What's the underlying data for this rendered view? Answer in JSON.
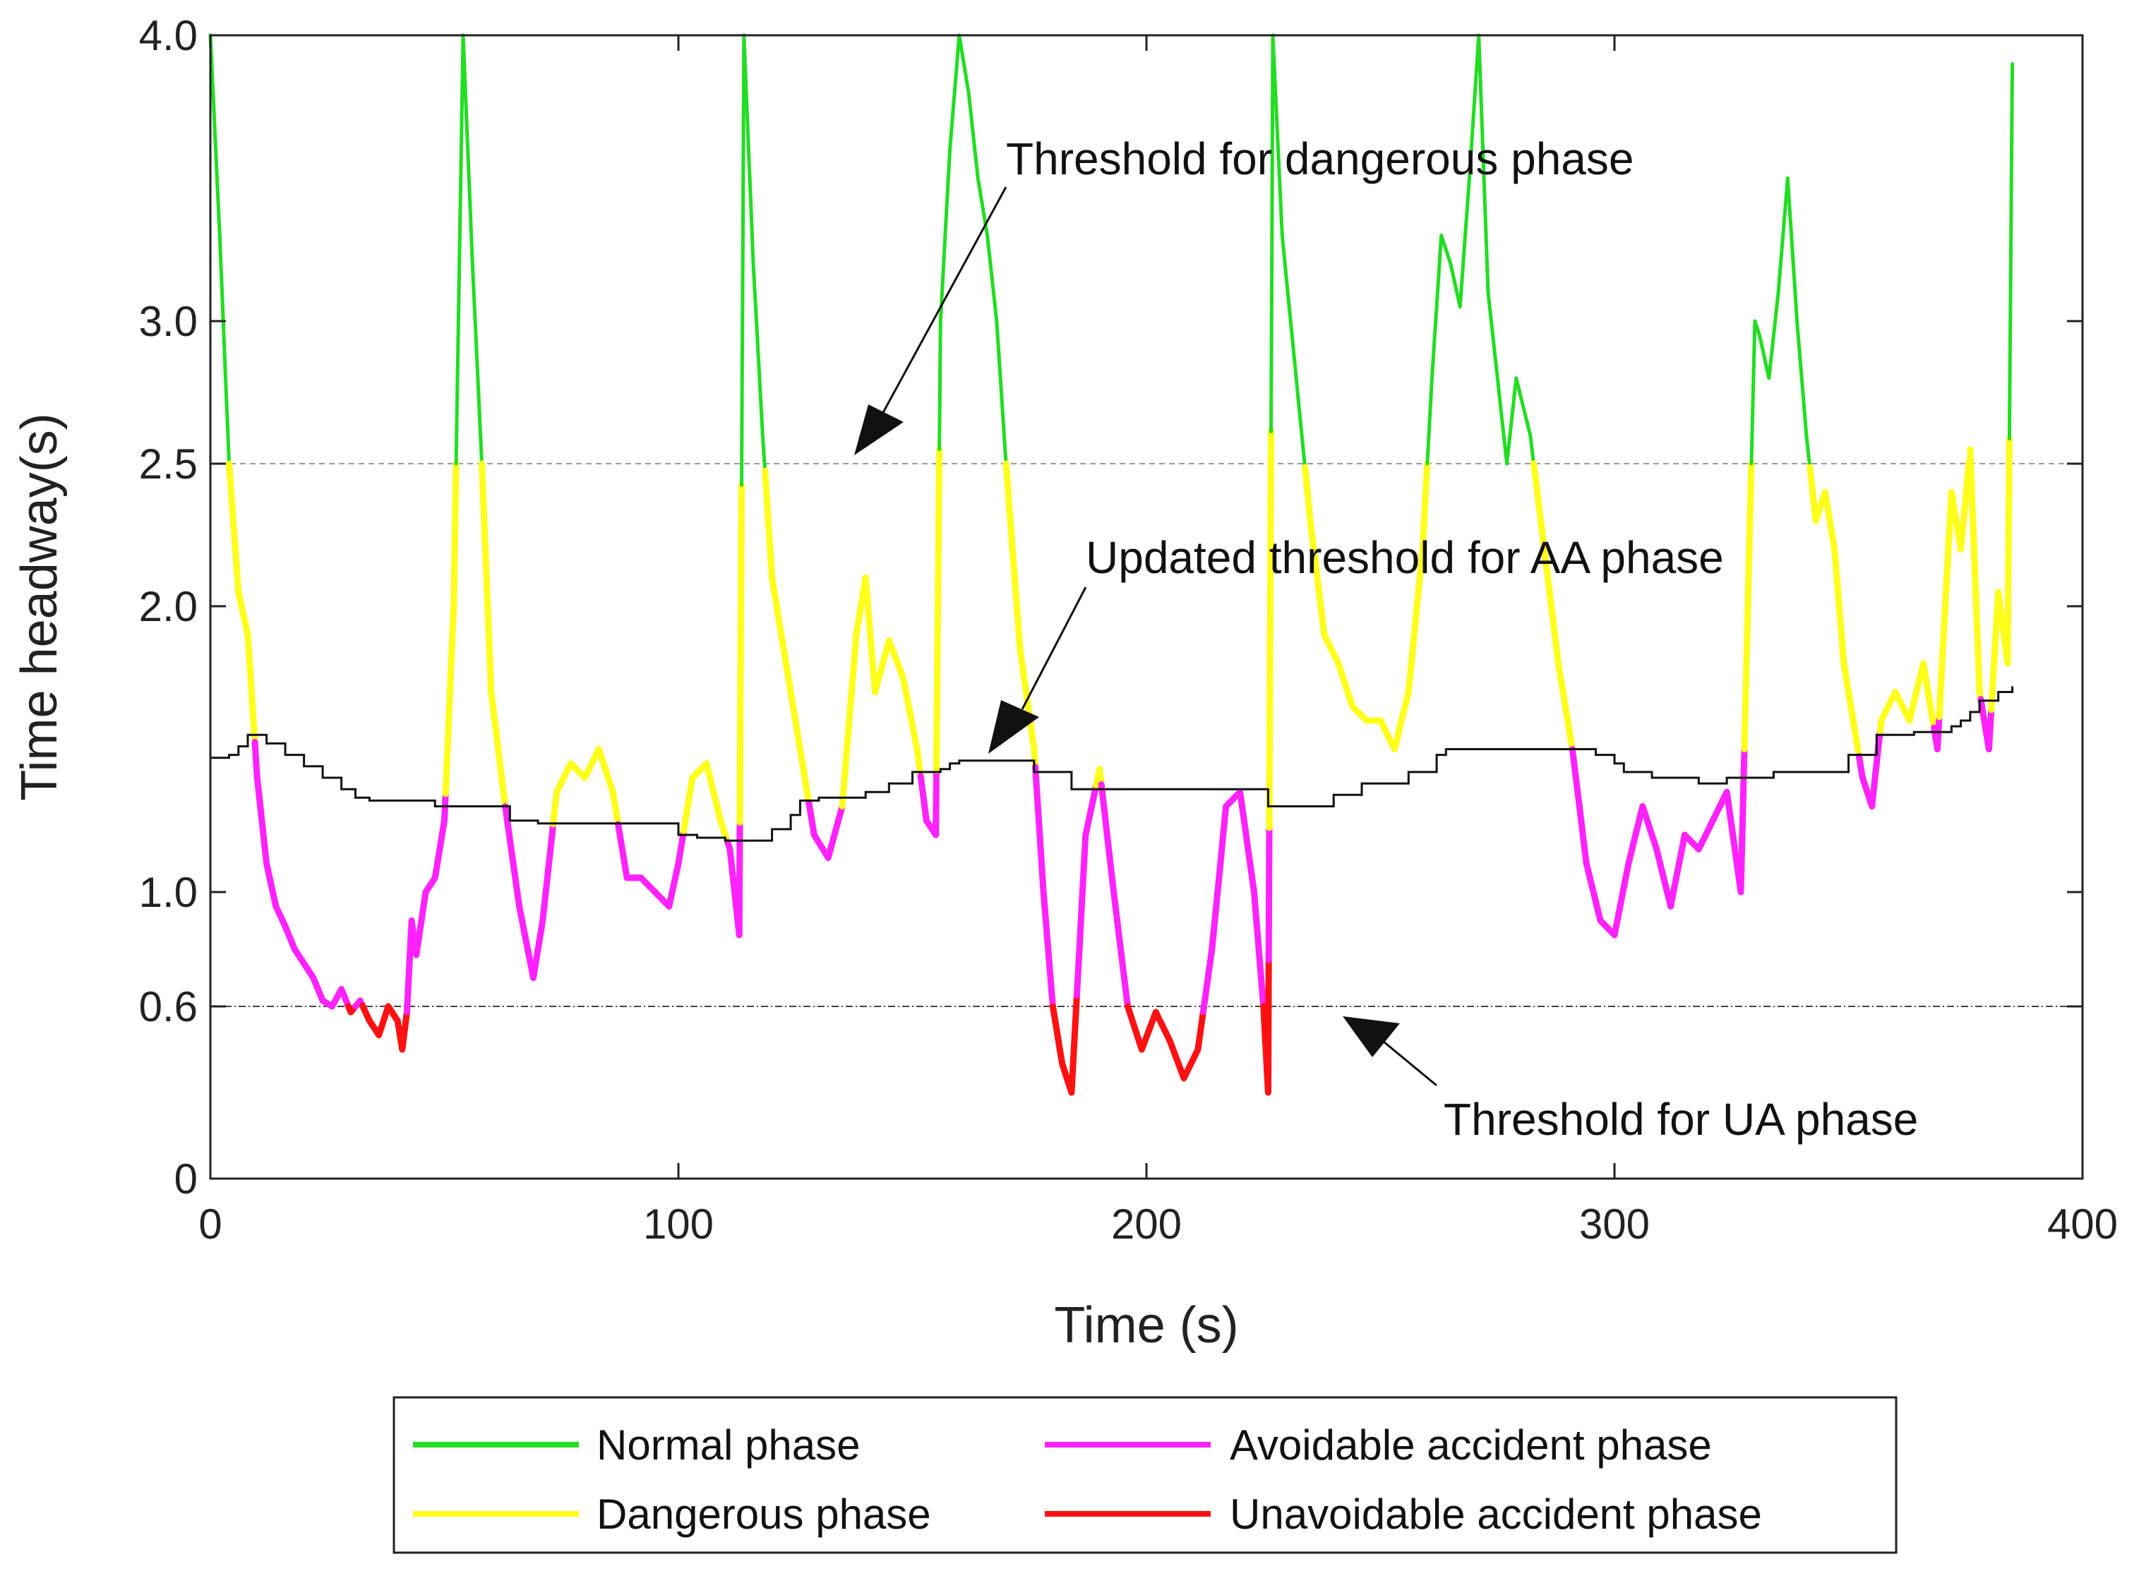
{
  "chart_data": {
    "type": "line",
    "title": "",
    "xlabel": "Time (s)",
    "ylabel": "Time headway(s)",
    "xlim": [
      0,
      400
    ],
    "y_ticks": [
      0,
      0.6,
      1.0,
      2.0,
      2.5,
      3.0,
      4.0
    ],
    "x_ticks": [
      0,
      100,
      200,
      300,
      400
    ],
    "x_tick_labels": [
      "0",
      "100",
      "200",
      "300",
      "400"
    ],
    "y_tick_labels": [
      "0",
      "0.6",
      "1.0",
      "2.0",
      "2.5",
      "3.0",
      "4.0"
    ],
    "grid": false,
    "thresholds": [
      {
        "name": "Threshold for dangerous phase",
        "value": 2.5,
        "style": "dashed",
        "color": "#9a9a9a"
      },
      {
        "name": "Threshold for UA phase",
        "value": 0.6,
        "style": "dash-dot",
        "color": "#444444"
      }
    ],
    "phase_colors": {
      "normal": "#22dd22",
      "dangerous": "#ffff1a",
      "avoidable": "#ff22ff",
      "unavoidable": "#ff1111"
    },
    "series": [
      {
        "name": "Time headway",
        "x": [
          0,
          2,
          4,
          6,
          8,
          10,
          12,
          14,
          16,
          18,
          20,
          22,
          24,
          26,
          28,
          30,
          32,
          34,
          36,
          38,
          40,
          41,
          42,
          43,
          44,
          46,
          48,
          50,
          52,
          54,
          56,
          58,
          60,
          63,
          66,
          69,
          71,
          74,
          77,
          80,
          83,
          86,
          89,
          92,
          95,
          98,
          100,
          103,
          106,
          109,
          111,
          113,
          114,
          116,
          118,
          120,
          123,
          126,
          129,
          132,
          135,
          138,
          140,
          142,
          145,
          148,
          151,
          153,
          155,
          156,
          158,
          160,
          162,
          164,
          166,
          168,
          170,
          173,
          176,
          178,
          180,
          182,
          184,
          187,
          190,
          193,
          196,
          199,
          202,
          205,
          208,
          211,
          214,
          217,
          220,
          223,
          225,
          226,
          227,
          229,
          232,
          235,
          238,
          241,
          244,
          247,
          250,
          253,
          256,
          259,
          261,
          263,
          265,
          267,
          269,
          271,
          273,
          275,
          277,
          279,
          282,
          285,
          288,
          291,
          294,
          297,
          300,
          303,
          306,
          309,
          312,
          315,
          318,
          321,
          324,
          327,
          330,
          331,
          333,
          335,
          337,
          339,
          341,
          343,
          345,
          347,
          349,
          351,
          353,
          355,
          357,
          360,
          363,
          366,
          369,
          372,
          374,
          376,
          378,
          380,
          382,
          384,
          385
        ],
        "y": [
          4.0,
          3.3,
          2.5,
          2.05,
          1.9,
          1.4,
          1.1,
          0.95,
          0.88,
          0.8,
          0.75,
          0.7,
          0.62,
          0.6,
          0.66,
          0.58,
          0.62,
          0.55,
          0.5,
          0.6,
          0.55,
          0.45,
          0.58,
          0.9,
          0.78,
          1.0,
          1.05,
          1.25,
          2.0,
          4.0,
          3.2,
          2.5,
          1.7,
          1.3,
          0.95,
          0.7,
          0.9,
          1.35,
          1.45,
          1.4,
          1.5,
          1.35,
          1.05,
          1.05,
          1.0,
          0.95,
          1.1,
          1.4,
          1.45,
          1.25,
          1.15,
          0.85,
          4.0,
          3.2,
          2.6,
          2.1,
          1.8,
          1.5,
          1.2,
          1.12,
          1.3,
          1.9,
          2.1,
          1.7,
          1.88,
          1.75,
          1.5,
          1.25,
          1.2,
          3.0,
          3.6,
          4.0,
          3.8,
          3.5,
          3.3,
          3.0,
          2.5,
          1.85,
          1.5,
          1.0,
          0.6,
          0.4,
          0.3,
          1.2,
          1.43,
          1.0,
          0.6,
          0.45,
          0.58,
          0.48,
          0.35,
          0.45,
          0.8,
          1.3,
          1.35,
          1.0,
          0.6,
          0.3,
          4.0,
          3.3,
          2.8,
          2.3,
          1.9,
          1.8,
          1.65,
          1.6,
          1.6,
          1.5,
          1.7,
          2.2,
          2.8,
          3.3,
          3.2,
          3.05,
          3.5,
          4.0,
          3.1,
          2.8,
          2.5,
          2.8,
          2.6,
          2.2,
          1.8,
          1.5,
          1.1,
          0.9,
          0.85,
          1.1,
          1.3,
          1.15,
          0.95,
          1.2,
          1.15,
          1.25,
          1.35,
          1.0,
          3.0,
          2.95,
          2.8,
          3.1,
          3.5,
          3.0,
          2.6,
          2.3,
          2.4,
          2.2,
          1.8,
          1.6,
          1.4,
          1.3,
          1.6,
          1.7,
          1.6,
          1.8,
          1.5,
          2.4,
          2.2,
          2.55,
          1.7,
          1.5,
          2.05,
          1.8,
          3.9
        ]
      },
      {
        "name": "Updated threshold for AA phase",
        "x": [
          0,
          4,
          6,
          8,
          12,
          16,
          20,
          24,
          28,
          31,
          34,
          48,
          60,
          64,
          70,
          100,
          104,
          110,
          120,
          124,
          126,
          130,
          140,
          145,
          150,
          156,
          158,
          160,
          170,
          176,
          184,
          220,
          226,
          236,
          240,
          246,
          256,
          262,
          264,
          292,
          296,
          300,
          302,
          308,
          318,
          324,
          334,
          350,
          356,
          364,
          372,
          374,
          376,
          378,
          382,
          385
        ],
        "y": [
          1.47,
          1.48,
          1.51,
          1.55,
          1.52,
          1.48,
          1.44,
          1.4,
          1.36,
          1.33,
          1.32,
          1.3,
          1.3,
          1.25,
          1.24,
          1.2,
          1.19,
          1.18,
          1.22,
          1.27,
          1.32,
          1.33,
          1.35,
          1.38,
          1.42,
          1.43,
          1.45,
          1.46,
          1.46,
          1.42,
          1.36,
          1.36,
          1.3,
          1.3,
          1.34,
          1.38,
          1.42,
          1.48,
          1.5,
          1.5,
          1.48,
          1.45,
          1.42,
          1.4,
          1.38,
          1.4,
          1.42,
          1.48,
          1.55,
          1.56,
          1.58,
          1.6,
          1.63,
          1.67,
          1.7,
          1.72
        ]
      }
    ],
    "annotations": [
      {
        "text": "Threshold for dangerous phase",
        "x": 137,
        "y": 2.5
      },
      {
        "text": "Updated threshold for AA phase",
        "x": 166,
        "y": 1.47
      },
      {
        "text": "Threshold for UA phase",
        "x": 242,
        "y": 0.6
      }
    ],
    "legend": {
      "position": "bottom",
      "entries": [
        {
          "label": "Normal phase",
          "color": "#22dd22"
        },
        {
          "label": "Avoidable accident phase",
          "color": "#ff22ff"
        },
        {
          "label": "Dangerous phase",
          "color": "#ffff1a"
        },
        {
          "label": "Unavoidable accident phase",
          "color": "#ff1111"
        }
      ]
    }
  }
}
